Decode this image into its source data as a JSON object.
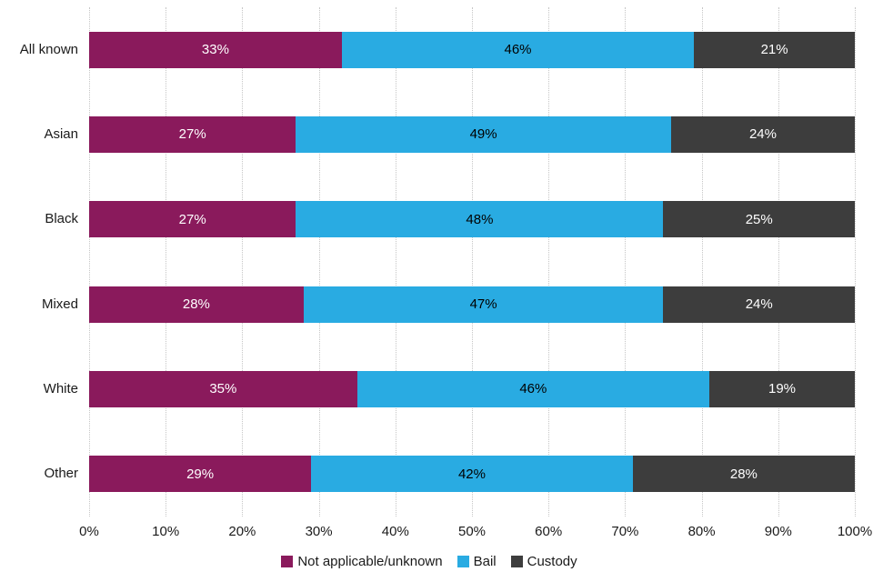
{
  "chart_data": {
    "type": "bar",
    "orientation": "horizontal",
    "stacked": true,
    "categories": [
      "All known",
      "Asian",
      "Black",
      "Mixed",
      "White",
      "Other"
    ],
    "series": [
      {
        "name": "Not applicable/unknown",
        "color": "#8a1a5c",
        "label_color": "#ffffff",
        "values": [
          33,
          27,
          27,
          28,
          35,
          29
        ]
      },
      {
        "name": "Bail",
        "color": "#29abe2",
        "label_color": "#000000",
        "values": [
          46,
          49,
          48,
          47,
          46,
          42
        ]
      },
      {
        "name": "Custody",
        "color": "#3d3d3d",
        "label_color": "#ffffff",
        "values": [
          21,
          24,
          25,
          24,
          19,
          28
        ]
      }
    ],
    "value_suffix": "%",
    "xlim": [
      0,
      100
    ],
    "x_ticks": [
      "0%",
      "10%",
      "20%",
      "30%",
      "40%",
      "50%",
      "60%",
      "70%",
      "80%",
      "90%",
      "100%"
    ],
    "grid": "dotted-vertical",
    "legend_position": "bottom"
  }
}
